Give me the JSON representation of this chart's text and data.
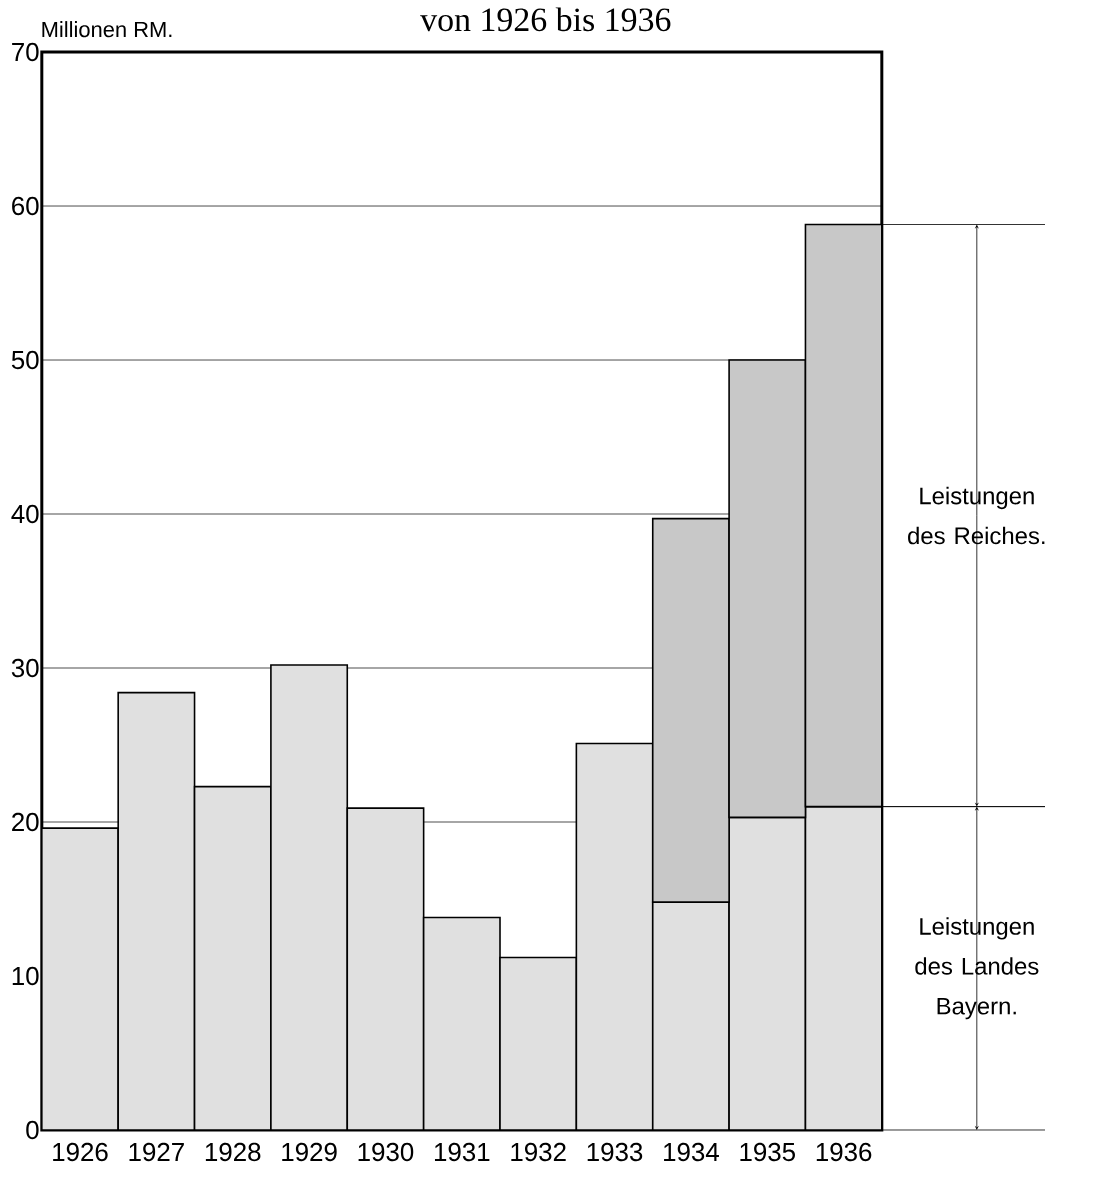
{
  "chart_data": {
    "type": "bar",
    "stacked": true,
    "title": "von 1926 bis 1936",
    "ylabel": "Millionen RM.",
    "categories": [
      "1926",
      "1927",
      "1928",
      "1929",
      "1930",
      "1931",
      "1932",
      "1933",
      "1934",
      "1935",
      "1936"
    ],
    "series": [
      {
        "name": "Leistungen des Landes Bayern.",
        "color": "#e0e0e0",
        "values": [
          19.6,
          28.4,
          22.3,
          30.2,
          20.9,
          13.8,
          11.2,
          25.1,
          14.8,
          20.3,
          21.0
        ]
      },
      {
        "name": "Leistungen des Reiches.",
        "color": "#c8c8c8",
        "values": [
          null,
          null,
          null,
          null,
          null,
          null,
          null,
          null,
          24.9,
          29.7,
          37.8
        ]
      }
    ],
    "ylim": [
      0,
      70
    ],
    "yticks": [
      0,
      10,
      20,
      30,
      40,
      50,
      60,
      70
    ],
    "grid": "y"
  }
}
